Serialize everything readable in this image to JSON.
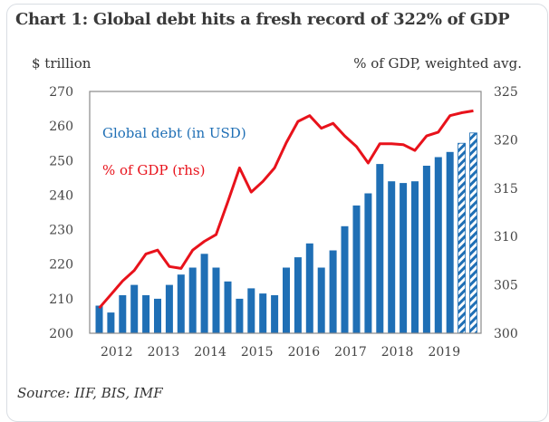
{
  "chart_data": {
    "type": "bar",
    "title": "Chart 1: Global debt hits a fresh record of 322% of GDP",
    "ylabel_left": "$ trillion",
    "ylabel_right": "% of GDP, weighted avg.",
    "source": "Source: IIF, BIS, IMF",
    "x_tick_labels": [
      "2012",
      "2013",
      "2014",
      "2015",
      "2016",
      "2017",
      "2018",
      "2019"
    ],
    "y_left": {
      "min": 200,
      "max": 270,
      "ticks": [
        200,
        210,
        220,
        230,
        240,
        250,
        260,
        270
      ]
    },
    "y_right": {
      "min": 300,
      "max": 325,
      "ticks": [
        300,
        305,
        310,
        315,
        320,
        325
      ]
    },
    "grid": false,
    "legend": [
      {
        "name": "Global debt (in USD)",
        "color": "#1f6fb5"
      },
      {
        "name": "% of GDP (rhs)",
        "color": "#e8121b"
      }
    ],
    "categories": [
      "2012Q1",
      "2012Q2",
      "2012Q3",
      "2012Q4",
      "2013Q1",
      "2013Q2",
      "2013Q3",
      "2013Q4",
      "2014Q1",
      "2014Q2",
      "2014Q3",
      "2014Q4",
      "2015Q1",
      "2015Q2",
      "2015Q3",
      "2015Q4",
      "2016Q1",
      "2016Q2",
      "2016Q3",
      "2016Q4",
      "2017Q1",
      "2017Q2",
      "2017Q3",
      "2017Q4",
      "2018Q1",
      "2018Q2",
      "2018Q3",
      "2018Q4",
      "2019Q1",
      "2019Q2",
      "2019Q3",
      "2019Q4",
      "2020Q1"
    ],
    "series": [
      {
        "name": "Global debt (in USD)",
        "type": "bar",
        "axis": "left",
        "color": "#1f6fb5",
        "values": [
          208,
          206,
          211,
          214,
          211,
          210,
          214,
          217,
          219,
          223,
          219,
          215,
          210,
          213,
          211.5,
          211,
          219,
          222,
          226,
          219,
          224,
          231,
          237,
          240.5,
          249,
          244,
          243.5,
          244,
          248.5,
          251,
          252.5,
          255,
          258
        ],
        "hatched_last": 2
      },
      {
        "name": "% of GDP (rhs)",
        "type": "line",
        "axis": "right",
        "color": "#e8121b",
        "values": [
          302.6,
          304.0,
          305.4,
          306.5,
          308.2,
          308.6,
          306.9,
          306.7,
          308.6,
          309.5,
          310.2,
          313.6,
          317.1,
          314.6,
          315.7,
          317.1,
          319.7,
          321.9,
          322.5,
          321.2,
          321.7,
          320.4,
          319.3,
          317.6,
          319.6,
          319.6,
          319.5,
          318.9,
          320.4,
          320.8,
          322.5,
          322.8,
          323.0
        ]
      }
    ]
  }
}
